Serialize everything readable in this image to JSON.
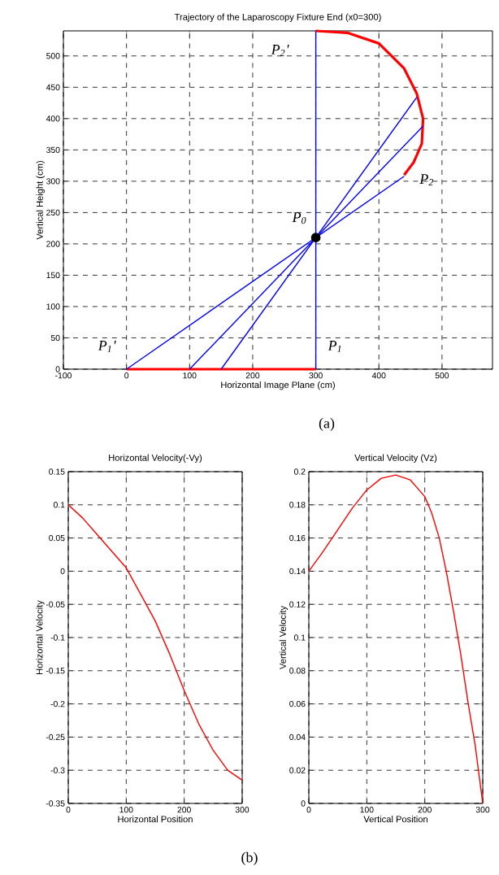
{
  "chart_data": [
    {
      "type": "line",
      "title": "Trajectory of the Laparoscopy Fixture End (x0=300)",
      "xlabel": "Horizontal Image Plane (cm)",
      "ylabel": "Vertical Height (cm)",
      "xlim": [
        -100,
        580
      ],
      "ylim": [
        0,
        540
      ],
      "xticks": [
        -100,
        0,
        100,
        200,
        300,
        400,
        500
      ],
      "yticks": [
        0,
        50,
        100,
        150,
        200,
        250,
        300,
        350,
        400,
        450,
        500
      ],
      "grid": true,
      "line_style": "solid",
      "marker": "none",
      "series": [
        {
          "color": "#ff0000",
          "x": [
            0,
            300
          ],
          "values": [
            0,
            0
          ]
        },
        {
          "color": "#ff0000",
          "x": [
            300,
            350,
            400,
            440,
            460,
            470,
            468,
            455,
            440
          ],
          "values": [
            540,
            537,
            520,
            480,
            440,
            400,
            360,
            330,
            310
          ]
        },
        {
          "color": "#0000ff",
          "x": [
            300,
            300
          ],
          "values": [
            0,
            540
          ]
        },
        {
          "color": "#0000ff",
          "x": [
            0,
            440
          ],
          "values": [
            0,
            308
          ]
        },
        {
          "color": "#0000ff",
          "x": [
            100,
            470
          ],
          "values": [
            0,
            388
          ]
        },
        {
          "color": "#0000ff",
          "x": [
            150,
            460
          ],
          "values": [
            0,
            434
          ]
        },
        {
          "type": "scatter",
          "marker": "circle",
          "color": "#000000",
          "x": [
            300
          ],
          "values": [
            210
          ]
        }
      ],
      "annotations": [
        {
          "text": "P$_{2}$'",
          "x": 300,
          "y": 540
        },
        {
          "text": "P$_{2}$",
          "x": 440,
          "y": 310
        },
        {
          "text": "P$_{0}$",
          "x": 300,
          "y": 210
        },
        {
          "text": "P$_{1}$'",
          "x": 0,
          "y": 0
        },
        {
          "text": "P$_{1}$",
          "x": 300,
          "y": 0
        },
        "(a)"
      ]
    },
    {
      "type": "line",
      "title": "Horizontal Velocity(-Vy)",
      "xlabel": "Horizontal Position",
      "ylabel": "Horizontal Velocity",
      "xlim": [
        0,
        300
      ],
      "ylim": [
        -0.35,
        0.15
      ],
      "xticks": [
        0,
        100,
        200,
        300
      ],
      "yticks": [
        -0.35,
        -0.3,
        -0.25,
        -0.2,
        -0.15,
        -0.1,
        -0.05,
        0,
        0.05,
        0.1,
        0.15
      ],
      "grid": true,
      "line_style": "solid",
      "marker": "none",
      "series": [
        {
          "color": "#ff0000",
          "x": [
            0,
            25,
            50,
            75,
            100,
            125,
            150,
            175,
            200,
            225,
            250,
            275,
            300
          ],
          "values": [
            0.1,
            0.08,
            0.055,
            0.03,
            0.005,
            -0.035,
            -0.075,
            -0.125,
            -0.18,
            -0.23,
            -0.27,
            -0.3,
            -0.315
          ]
        }
      ],
      "annotations": [
        "(b)"
      ]
    },
    {
      "type": "line",
      "title": "Vertical Velocity (Vz)",
      "xlabel": "Vertical Position",
      "ylabel": "Vertical Velocity",
      "xlim": [
        0,
        300
      ],
      "ylim": [
        0,
        0.2
      ],
      "xticks": [
        0,
        100,
        200,
        300
      ],
      "yticks": [
        0,
        0.02,
        0.04,
        0.06,
        0.08,
        0.1,
        0.12,
        0.14,
        0.16,
        0.18,
        0.2
      ],
      "grid": true,
      "line_style": "solid",
      "marker": "none",
      "series": [
        {
          "color": "#ff0000",
          "x": [
            0,
            25,
            50,
            75,
            100,
            125,
            150,
            175,
            200,
            212,
            225,
            237,
            250,
            262,
            275,
            287,
            300
          ],
          "values": [
            0.14,
            0.152,
            0.165,
            0.178,
            0.189,
            0.196,
            0.198,
            0.195,
            0.185,
            0.175,
            0.16,
            0.14,
            0.115,
            0.09,
            0.06,
            0.035,
            0
          ]
        }
      ]
    }
  ]
}
